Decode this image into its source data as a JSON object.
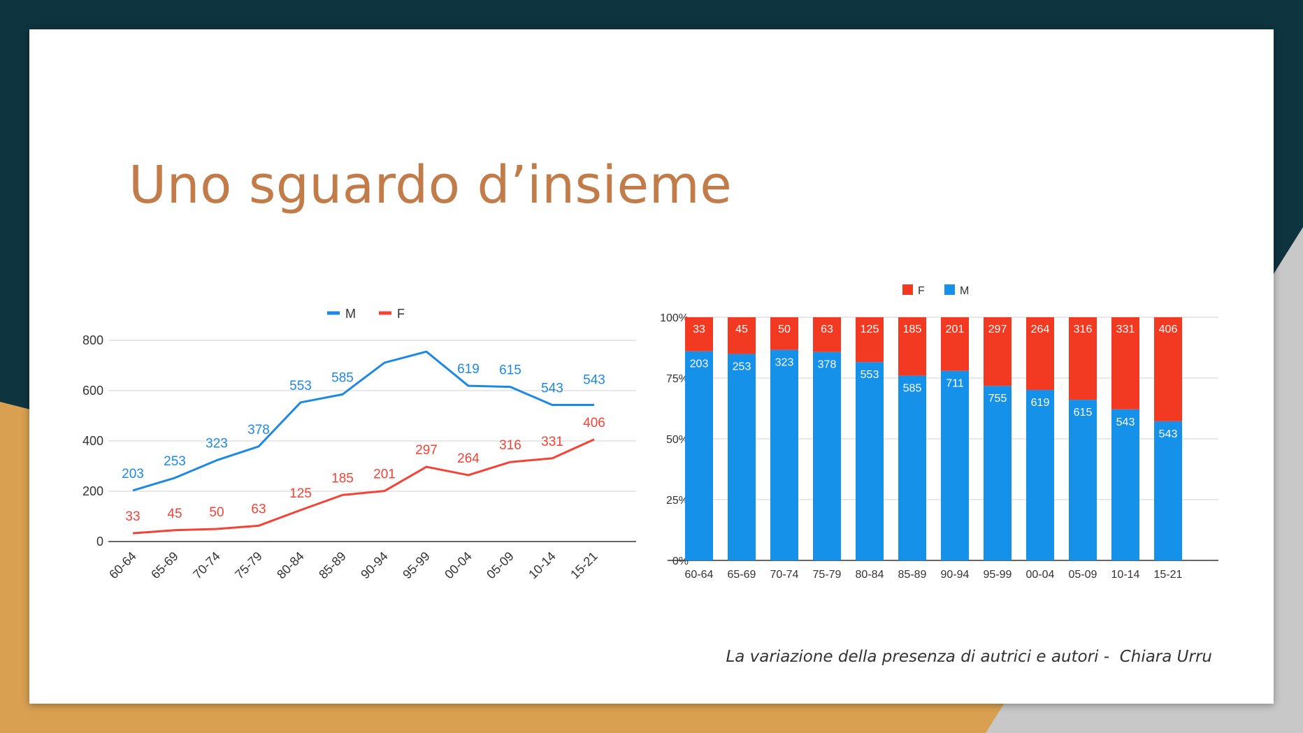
{
  "slide": {
    "title": "Uno sguardo d’insieme",
    "caption": "La variazione della presenza di autrici e autori -  Chiara Urru"
  },
  "colors": {
    "frame": "#0e3440",
    "gold": "#d9a052",
    "gray": "#c8c8c8",
    "title": "#c27c4a",
    "male": "#1e88e5",
    "male_bar": "#1591ea",
    "female": "#f44336",
    "female_bar": "#f23a22"
  },
  "chart_data": [
    {
      "type": "line",
      "categories": [
        "60-64",
        "65-69",
        "70-74",
        "75-79",
        "80-84",
        "85-89",
        "90-94",
        "95-99",
        "00-04",
        "05-09",
        "10-14",
        "15-21"
      ],
      "series": [
        {
          "name": "M",
          "values": [
            203,
            253,
            323,
            378,
            553,
            585,
            711,
            755,
            619,
            615,
            543,
            543
          ],
          "labels": [
            "203",
            "253",
            "323",
            "378",
            "553",
            "585",
            "",
            "",
            "619",
            "615",
            "543",
            "543"
          ]
        },
        {
          "name": "F",
          "values": [
            33,
            45,
            50,
            63,
            125,
            185,
            201,
            297,
            264,
            316,
            331,
            406
          ],
          "labels": [
            "33",
            "45",
            "50",
            "63",
            "125",
            "185",
            "201",
            "297",
            "264",
            "316",
            "331",
            "406"
          ]
        }
      ],
      "ylim": [
        0,
        800
      ],
      "yticks": [
        "0",
        "200",
        "400",
        "600",
        "800"
      ],
      "legend": "top-center",
      "grid": true
    },
    {
      "type": "bar",
      "stacked": "percent",
      "categories": [
        "60-64",
        "65-69",
        "70-74",
        "75-79",
        "80-84",
        "85-89",
        "90-94",
        "95-99",
        "00-04",
        "05-09",
        "10-14",
        "15-21"
      ],
      "series": [
        {
          "name": "M",
          "values": [
            203,
            253,
            323,
            378,
            553,
            585,
            711,
            755,
            619,
            615,
            543,
            543
          ]
        },
        {
          "name": "F",
          "values": [
            33,
            45,
            50,
            63,
            125,
            185,
            201,
            297,
            264,
            316,
            331,
            406
          ]
        }
      ],
      "legend_order": [
        "F",
        "M"
      ],
      "yticks": [
        "0%",
        "25%",
        "50%",
        "75%",
        "100%"
      ],
      "legend": "top-center",
      "grid": true
    }
  ]
}
